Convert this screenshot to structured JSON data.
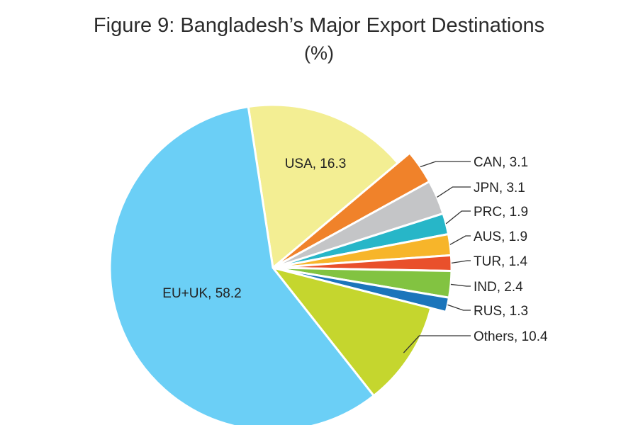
{
  "chart_data": {
    "type": "pie",
    "title": "Figure 9: Bangladesh’s Major Export Destinations",
    "subtitle": "(%)",
    "slices": [
      {
        "label": "USA",
        "value": 16.3,
        "color": "#f3ee93"
      },
      {
        "label": "CAN",
        "value": 3.1,
        "color": "#f0822a"
      },
      {
        "label": "JPN",
        "value": 3.1,
        "color": "#c4c5c7"
      },
      {
        "label": "PRC",
        "value": 1.9,
        "color": "#27b6c8"
      },
      {
        "label": "AUS",
        "value": 1.9,
        "color": "#f7b52a"
      },
      {
        "label": "TUR",
        "value": 1.4,
        "color": "#e9502b"
      },
      {
        "label": "IND",
        "value": 2.4,
        "color": "#82c341"
      },
      {
        "label": "RUS",
        "value": 1.3,
        "color": "#1b75bb"
      },
      {
        "label": "Others",
        "value": 10.4,
        "color": "#c5d62e"
      },
      {
        "label": "EU+UK",
        "value": 58.2,
        "color": "#6bcff6"
      }
    ]
  }
}
